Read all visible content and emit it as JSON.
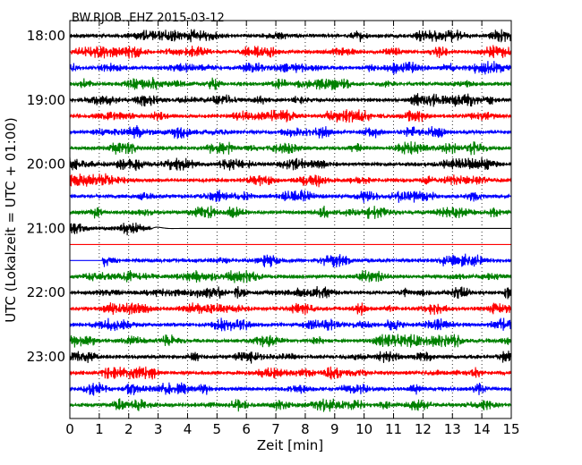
{
  "chart_data": {
    "type": "line",
    "title": "BW.RJOB..EHZ 2015-03-12",
    "xlabel": "Zeit  [min]",
    "ylabel": "UTC (Lokalzeit = UTC + 01:00)",
    "xlim": [
      0,
      15
    ],
    "x_ticks": [
      "0",
      "1",
      "2",
      "3",
      "4",
      "5",
      "6",
      "7",
      "8",
      "9",
      "10",
      "11",
      "12",
      "13",
      "14",
      "15"
    ],
    "y_ticks": [
      "18:00",
      "19:00",
      "20:00",
      "21:00",
      "22:00",
      "23:00"
    ],
    "grid": "vertical dotted",
    "trace_interval_min": 15,
    "start_time": "18:00",
    "end_time": "24:00",
    "trace_colors": [
      "#000000",
      "#ff0000",
      "#0000ff",
      "#008000"
    ],
    "gaps": [
      {
        "time": "21:00",
        "data_until_min": 2.8
      },
      {
        "time": "21:15",
        "data_until_min": 0
      },
      {
        "time": "21:30",
        "data_from_min": 1.1
      }
    ]
  }
}
